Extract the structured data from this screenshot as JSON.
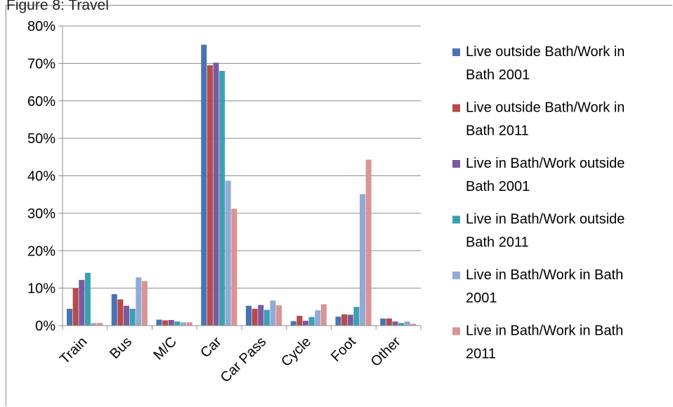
{
  "header": {
    "clipped_title": "Figure 8: Travel"
  },
  "chart_data": {
    "type": "bar",
    "categories": [
      "Train",
      "Bus",
      "M/C",
      "Car",
      "Car Pass",
      "Cycle",
      "Foot",
      "Other"
    ],
    "ylim": [
      0,
      0.8
    ],
    "yticks": [
      "0%",
      "10%",
      "20%",
      "30%",
      "40%",
      "50%",
      "60%",
      "70%",
      "80%"
    ],
    "grid": true,
    "legend_position": "right",
    "series": [
      {
        "name": "Live outside Bath/Work in Bath 2001",
        "color": "#4a73b5",
        "values": [
          0.045,
          0.084,
          0.016,
          0.75,
          0.053,
          0.012,
          0.024,
          0.019
        ]
      },
      {
        "name": "Live outside Bath/Work in Bath 2011",
        "color": "#b84a4a",
        "values": [
          0.1,
          0.07,
          0.014,
          0.695,
          0.045,
          0.026,
          0.03,
          0.019
        ]
      },
      {
        "name": "Live in Bath/Work outside Bath 2001",
        "color": "#7b5aa0",
        "values": [
          0.122,
          0.053,
          0.015,
          0.702,
          0.055,
          0.013,
          0.029,
          0.011
        ]
      },
      {
        "name": "Live in Bath/Work outside Bath 2011",
        "color": "#3aa0b4",
        "values": [
          0.141,
          0.045,
          0.011,
          0.68,
          0.042,
          0.023,
          0.05,
          0.007
        ]
      },
      {
        "name": "Live in Bath/Work in Bath 2001",
        "color": "#93aad6",
        "values": [
          0.007,
          0.129,
          0.009,
          0.387,
          0.067,
          0.041,
          0.351,
          0.011
        ]
      },
      {
        "name": "Live in Bath/Work in Bath 2011",
        "color": "#d99494",
        "values": [
          0.007,
          0.119,
          0.009,
          0.312,
          0.054,
          0.057,
          0.443,
          0.005
        ]
      }
    ],
    "legend_lines": [
      [
        "Live outside Bath/Work in",
        "Bath 2001"
      ],
      [
        "Live outside Bath/Work in",
        "Bath 2011"
      ],
      [
        "Live in Bath/Work outside",
        "Bath 2001"
      ],
      [
        "Live in Bath/Work outside",
        "Bath 2011"
      ],
      [
        "Live in Bath/Work in Bath",
        "2001"
      ],
      [
        "Live in Bath/Work in Bath",
        "2011"
      ]
    ]
  }
}
